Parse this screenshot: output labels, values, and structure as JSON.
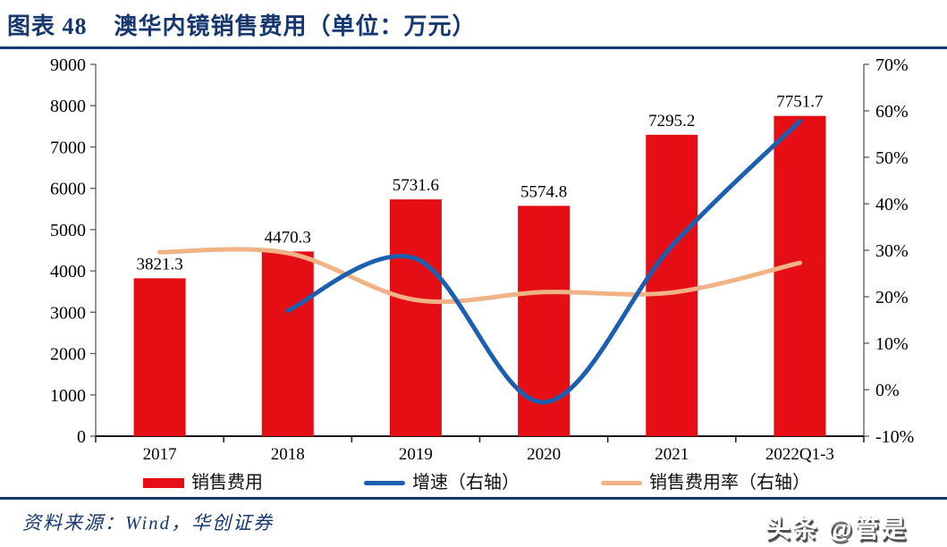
{
  "page": {
    "figure_label": "图表 48",
    "title": "澳华内镜销售费用（单位：万元）",
    "source_note": "资料来源：Wind，华创证券",
    "watermark": "头条 @管是"
  },
  "colors": {
    "accent_navy": "#16386F",
    "bar_red": "#E60E15",
    "line_blue": "#1C5FB0",
    "line_orange": "#F1B286",
    "axis_line": "#5a5a5a",
    "baseline": "#1a1a1a",
    "text_black": "#000000"
  },
  "chart_data": {
    "type": "bar+line combo",
    "categories": [
      "2017",
      "2018",
      "2019",
      "2020",
      "2021",
      "2022Q1-3"
    ],
    "series": [
      {
        "name": "销售费用",
        "type": "bar",
        "axis": "left",
        "color": "#E60E15",
        "values": [
          3821.3,
          4470.3,
          5731.6,
          5574.8,
          7295.2,
          7751.7
        ],
        "labels": [
          "3821.3",
          "4470.3",
          "5731.6",
          "5574.8",
          "7295.2",
          "7751.7"
        ]
      },
      {
        "name": "增速（右轴）",
        "type": "line",
        "axis": "right",
        "color": "#1C5FB0",
        "values": [
          null,
          17.0,
          28.2,
          -2.7,
          30.9,
          57.8
        ]
      },
      {
        "name": "销售费用率（右轴）",
        "type": "line",
        "axis": "right",
        "color": "#F1B286",
        "values": [
          29.6,
          29.4,
          19.3,
          21.0,
          20.9,
          27.3
        ]
      }
    ],
    "left_axis": {
      "min": 0,
      "max": 9000,
      "step": 1000,
      "ticks": [
        "0",
        "1000",
        "2000",
        "3000",
        "4000",
        "5000",
        "6000",
        "7000",
        "8000",
        "9000"
      ]
    },
    "right_axis": {
      "min": -10,
      "max": 70,
      "step": 10,
      "ticks": [
        "-10%",
        "0%",
        "10%",
        "20%",
        "30%",
        "40%",
        "50%",
        "60%",
        "70%"
      ]
    },
    "grid": false,
    "legend_position": "bottom",
    "smooth_lines": true
  }
}
